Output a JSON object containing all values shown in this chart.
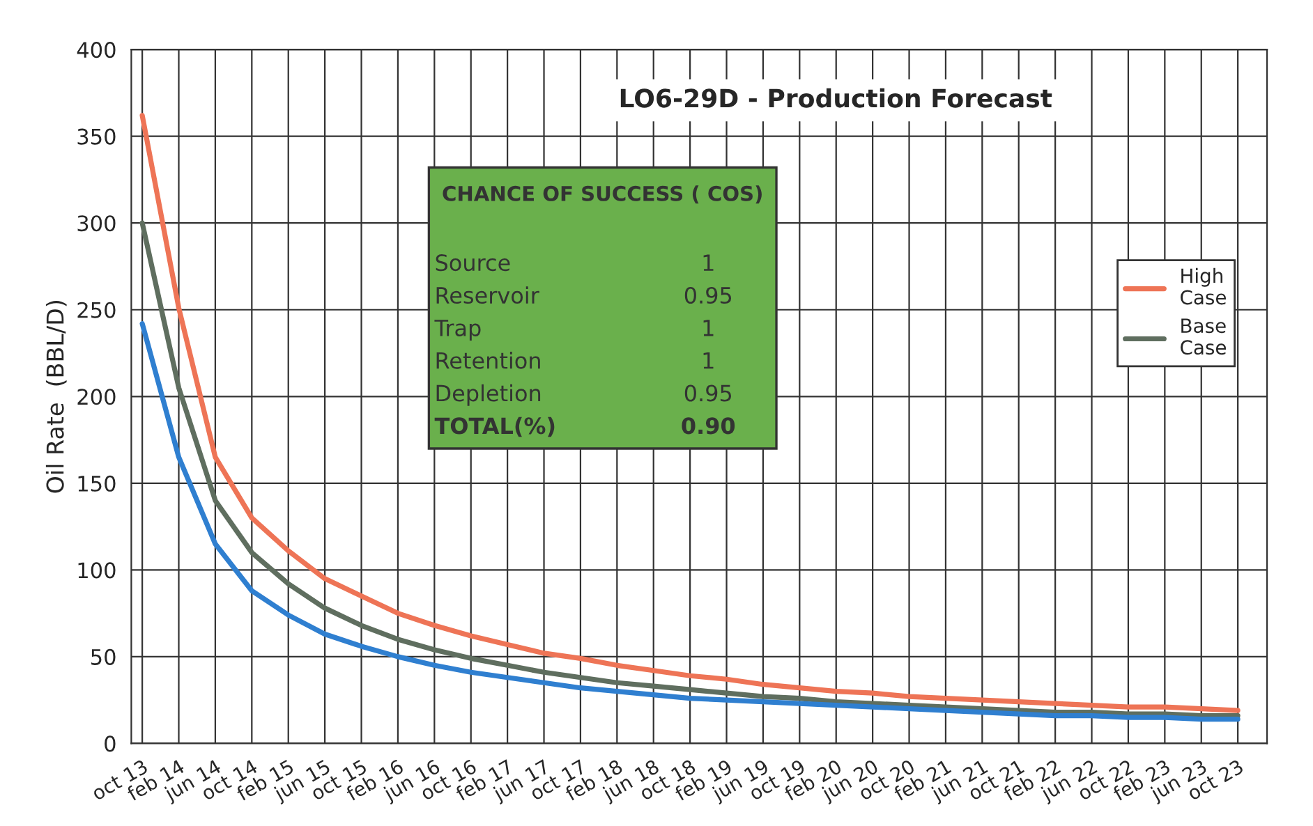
{
  "chart_data": {
    "type": "line",
    "title": "LO6-29D - Production Forecast",
    "ylabel": "Oil Rate  (BBL/D)",
    "categories": [
      "oct 13",
      "feb 14",
      "jun 14",
      "oct 14",
      "feb 15",
      "jun 15",
      "oct 15",
      "feb 16",
      "jun 16",
      "oct 16",
      "feb 17",
      "jun 17",
      "oct 17",
      "feb 18",
      "jun 18",
      "oct 18",
      "feb 19",
      "jun 19",
      "oct 19",
      "feb 20",
      "jun 20",
      "oct 20",
      "feb 21",
      "jun 21",
      "oct 21",
      "feb 22",
      "jun 22",
      "oct 22",
      "feb 23",
      "jun 23",
      "oct 23"
    ],
    "series": [
      {
        "name": "High Case",
        "color": "#ee7456",
        "values": [
          362,
          251,
          165,
          130,
          111,
          95,
          85,
          75,
          68,
          62,
          57,
          52,
          49,
          45,
          42,
          39,
          37,
          34,
          32,
          30,
          29,
          27,
          26,
          25,
          24,
          23,
          22,
          21,
          21,
          20,
          19
        ]
      },
      {
        "name": "Base Case",
        "color": "#5f6e5f",
        "values": [
          300,
          205,
          140,
          110,
          92,
          78,
          68,
          60,
          54,
          49,
          45,
          41,
          38,
          35,
          33,
          31,
          29,
          27,
          26,
          24,
          23,
          22,
          21,
          20,
          19,
          18,
          18,
          17,
          17,
          16,
          16
        ]
      },
      {
        "color": "#2f7fd0",
        "values": [
          242,
          165,
          115,
          88,
          74,
          63,
          56,
          50,
          45,
          41,
          38,
          35,
          32,
          30,
          28,
          26,
          25,
          24,
          23,
          22,
          21,
          20,
          19,
          18,
          17,
          16,
          16,
          15,
          15,
          14,
          14
        ]
      }
    ],
    "ylim": [
      0,
      400
    ],
    "yticks": [
      0,
      50,
      100,
      150,
      200,
      250,
      300,
      350,
      400
    ],
    "grid": true,
    "legend": "right",
    "marker": "none",
    "line_style": "solid",
    "annotations": [
      "CHANCE OF SUCCESS ( COS)",
      "Source",
      "1",
      "Reservoir",
      "0.95",
      "Trap",
      "1",
      "Retention",
      "1",
      "Depletion",
      "0.95",
      "TOTAL(%)",
      "0.90"
    ]
  }
}
